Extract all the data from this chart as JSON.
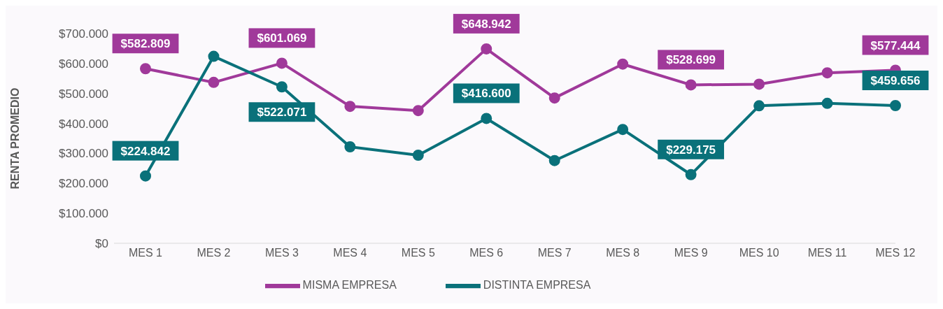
{
  "chart_data": {
    "type": "line",
    "ylabel": "RENTA PROMEDIO",
    "categories": [
      "MES 1",
      "MES 2",
      "MES 3",
      "MES 4",
      "MES 5",
      "MES 6",
      "MES 7",
      "MES 8",
      "MES 9",
      "MES 10",
      "MES 11",
      "MES 12"
    ],
    "series": [
      {
        "name": "MISMA EMPRESA",
        "color": "#a0399a",
        "values": [
          582809,
          537000,
          601069,
          457000,
          443000,
          648942,
          485000,
          598000,
          528699,
          531000,
          569000,
          577444
        ],
        "value_labels": [
          "$582.809",
          null,
          "$601.069",
          null,
          null,
          "$648.942",
          null,
          null,
          "$528.699",
          null,
          null,
          "$577.444"
        ]
      },
      {
        "name": "DISTINTA EMPRESA",
        "color": "#0a717a",
        "values": [
          224842,
          624000,
          522071,
          322000,
          294000,
          416600,
          276000,
          380000,
          229175,
          459000,
          467000,
          459656
        ],
        "value_labels": [
          "$224.842",
          null,
          "$522.071",
          null,
          null,
          "$416.600",
          null,
          null,
          "$229.175",
          null,
          null,
          "$459.656"
        ]
      }
    ],
    "ylim": [
      0,
      700000
    ],
    "yticks": [
      {
        "value": 0,
        "label": "$0"
      },
      {
        "value": 100000,
        "label": "$100.000"
      },
      {
        "value": 200000,
        "label": "$200.000"
      },
      {
        "value": 300000,
        "label": "$300.000"
      },
      {
        "value": 400000,
        "label": "$400.000"
      },
      {
        "value": 500000,
        "label": "$500.000"
      },
      {
        "value": 600000,
        "label": "$600.000"
      },
      {
        "value": 700000,
        "label": "$700.000"
      }
    ],
    "grid": false,
    "legend": "bottom",
    "marker": "circle",
    "line_style": "solid"
  }
}
